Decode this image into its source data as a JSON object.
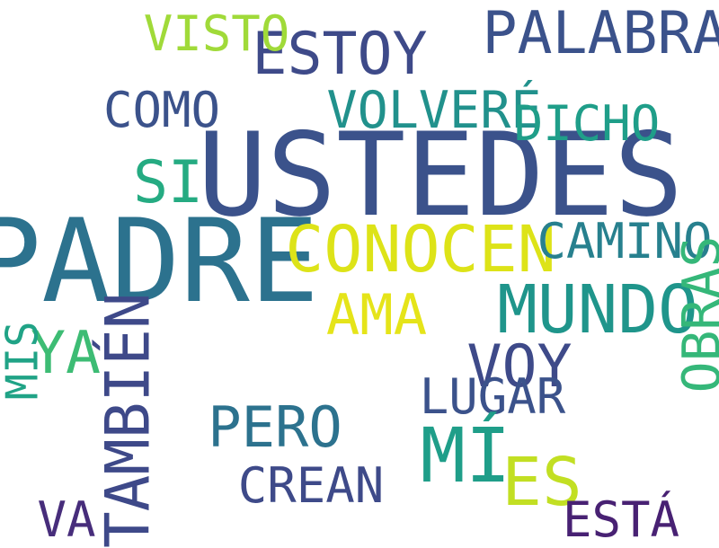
{
  "words": [
    {
      "text": "USTEDES",
      "color": "#3b528b",
      "rotated": false
    },
    {
      "text": "PADRE",
      "color": "#2c728e",
      "rotated": false
    },
    {
      "text": "PALABRA",
      "color": "#3b528b",
      "rotated": false
    },
    {
      "text": "ESTOY",
      "color": "#3e4a89",
      "rotated": false
    },
    {
      "text": "VISTO",
      "color": "#a0da39",
      "rotated": false
    },
    {
      "text": "COMO",
      "color": "#3b528b",
      "rotated": false
    },
    {
      "text": "VOLVERÉ",
      "color": "#21918c",
      "rotated": false
    },
    {
      "text": "DICHO",
      "color": "#1f9e89",
      "rotated": false
    },
    {
      "text": "SI",
      "color": "#25ab82",
      "rotated": false
    },
    {
      "text": "CONOCEN",
      "color": "#dde318",
      "rotated": false
    },
    {
      "text": "CAMINO",
      "color": "#27808e",
      "rotated": false
    },
    {
      "text": "MUNDO",
      "color": "#1f958b",
      "rotated": false
    },
    {
      "text": "OBRAS",
      "color": "#35b779",
      "rotated": true
    },
    {
      "text": "AMA",
      "color": "#e5e419",
      "rotated": false
    },
    {
      "text": "YA",
      "color": "#3dbc74",
      "rotated": false
    },
    {
      "text": "MIS",
      "color": "#20a386",
      "rotated": true
    },
    {
      "text": "TAMBIÉN",
      "color": "#3e4989",
      "rotated": true
    },
    {
      "text": "VOY",
      "color": "#3e4a89",
      "rotated": false
    },
    {
      "text": "LUGAR",
      "color": "#3b528b",
      "rotated": false
    },
    {
      "text": "PERO",
      "color": "#2c728e",
      "rotated": false
    },
    {
      "text": "MÍ",
      "color": "#1f9e89",
      "rotated": false
    },
    {
      "text": "ES",
      "color": "#c2df23",
      "rotated": false
    },
    {
      "text": "CREAN",
      "color": "#3e4a89",
      "rotated": false
    },
    {
      "text": "VA",
      "color": "#472d7b",
      "rotated": false
    },
    {
      "text": "ESTÁ",
      "color": "#482173",
      "rotated": false
    }
  ]
}
